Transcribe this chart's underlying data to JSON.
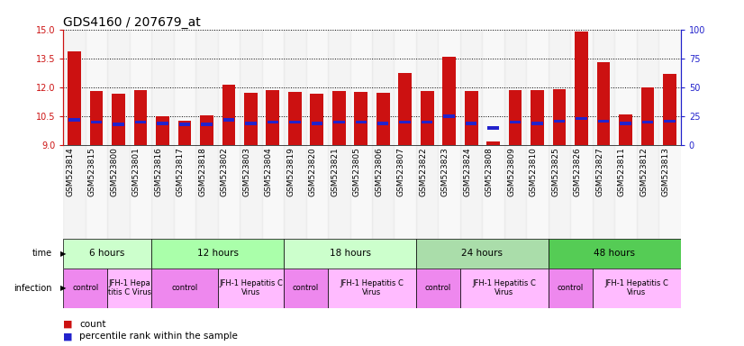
{
  "title": "GDS4160 / 207679_at",
  "samples": [
    "GSM523814",
    "GSM523815",
    "GSM523800",
    "GSM523801",
    "GSM523816",
    "GSM523817",
    "GSM523818",
    "GSM523802",
    "GSM523803",
    "GSM523804",
    "GSM523819",
    "GSM523820",
    "GSM523821",
    "GSM523805",
    "GSM523806",
    "GSM523807",
    "GSM523822",
    "GSM523823",
    "GSM523824",
    "GSM523808",
    "GSM523809",
    "GSM523810",
    "GSM523825",
    "GSM523826",
    "GSM523827",
    "GSM523811",
    "GSM523812",
    "GSM523813"
  ],
  "count_values": [
    13.85,
    11.8,
    11.65,
    11.88,
    10.5,
    10.25,
    10.55,
    12.15,
    11.72,
    11.88,
    11.78,
    11.65,
    11.82,
    11.78,
    11.72,
    12.75,
    11.82,
    13.58,
    11.8,
    9.22,
    11.85,
    11.88,
    11.92,
    14.88,
    13.32,
    10.6,
    12.0,
    12.72
  ],
  "percentile_values": [
    22,
    20,
    18,
    20,
    19,
    18,
    18,
    22,
    19,
    20,
    20,
    19,
    20,
    20,
    19,
    20,
    20,
    25,
    19,
    15,
    20,
    19,
    21,
    23,
    21,
    19,
    20,
    21
  ],
  "ymin": 9,
  "ymax": 15,
  "yticks": [
    9,
    10.5,
    12,
    13.5,
    15
  ],
  "y2ticks": [
    0,
    25,
    50,
    75,
    100
  ],
  "y2min": 0,
  "y2max": 100,
  "bar_color": "#cc1111",
  "percentile_color": "#2222cc",
  "bar_width": 0.6,
  "time_groups": [
    {
      "label": "6 hours",
      "start": 0,
      "end": 4,
      "color": "#ccffcc"
    },
    {
      "label": "12 hours",
      "start": 4,
      "end": 10,
      "color": "#aaffaa"
    },
    {
      "label": "18 hours",
      "start": 10,
      "end": 16,
      "color": "#ccffcc"
    },
    {
      "label": "24 hours",
      "start": 16,
      "end": 22,
      "color": "#aaddaa"
    },
    {
      "label": "48 hours",
      "start": 22,
      "end": 28,
      "color": "#55cc55"
    }
  ],
  "infection_groups": [
    {
      "label": "control",
      "start": 0,
      "end": 2,
      "color": "#ee88ee"
    },
    {
      "label": "JFH-1 Hepa\ntitis C Virus",
      "start": 2,
      "end": 4,
      "color": "#ffbbff"
    },
    {
      "label": "control",
      "start": 4,
      "end": 7,
      "color": "#ee88ee"
    },
    {
      "label": "JFH-1 Hepatitis C\nVirus",
      "start": 7,
      "end": 10,
      "color": "#ffbbff"
    },
    {
      "label": "control",
      "start": 10,
      "end": 12,
      "color": "#ee88ee"
    },
    {
      "label": "JFH-1 Hepatitis C\nVirus",
      "start": 12,
      "end": 16,
      "color": "#ffbbff"
    },
    {
      "label": "control",
      "start": 16,
      "end": 18,
      "color": "#ee88ee"
    },
    {
      "label": "JFH-1 Hepatitis C\nVirus",
      "start": 18,
      "end": 22,
      "color": "#ffbbff"
    },
    {
      "label": "control",
      "start": 22,
      "end": 24,
      "color": "#ee88ee"
    },
    {
      "label": "JFH-1 Hepatitis C\nVirus",
      "start": 24,
      "end": 28,
      "color": "#ffbbff"
    }
  ],
  "title_fontsize": 10,
  "tick_fontsize": 7,
  "axis_color_left": "#cc1111",
  "axis_color_right": "#2222cc"
}
